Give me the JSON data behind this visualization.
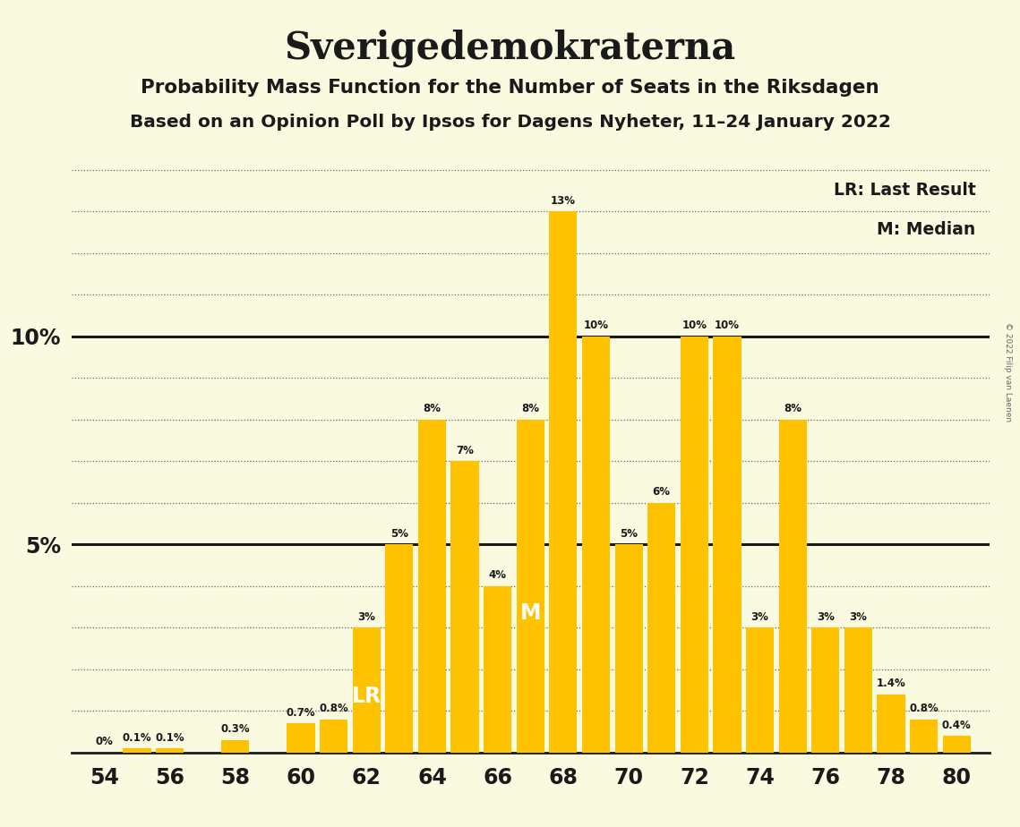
{
  "title": "Sverigedemokraterna",
  "subtitle1": "Probability Mass Function for the Number of Seats in the Riksdagen",
  "subtitle2": "Based on an Opinion Poll by Ipsos for Dagens Nyheter, 11–24 January 2022",
  "copyright": "© 2022 Filip van Laenen",
  "seats": [
    54,
    55,
    56,
    57,
    58,
    59,
    60,
    61,
    62,
    63,
    64,
    65,
    66,
    67,
    68,
    69,
    70,
    71,
    72,
    73,
    74,
    75,
    76,
    77,
    78,
    79,
    80
  ],
  "probabilities": [
    0.0,
    0.1,
    0.1,
    0.0,
    0.3,
    0.0,
    0.7,
    0.8,
    3.0,
    5.0,
    8.0,
    7.0,
    4.0,
    8.0,
    13.0,
    10.0,
    5.0,
    6.0,
    10.0,
    10.0,
    3.0,
    8.0,
    3.0,
    3.0,
    1.4,
    0.8,
    0.4
  ],
  "labels": [
    "0%",
    "0.1%",
    "0.1%",
    "",
    "0.3%",
    "",
    "0.7%",
    "0.8%",
    "3%",
    "5%",
    "8%",
    "7%",
    "4%",
    "8%",
    "13%",
    "10%",
    "5%",
    "6%",
    "10%",
    "10%",
    "3%",
    "8%",
    "3%",
    "3%",
    "1.4%",
    "0.8%",
    "0.4%"
  ],
  "bar_color": "#FFC200",
  "background_color": "#FAFAE0",
  "text_color": "#1a1a1a",
  "lr_seat": 62,
  "median_seat": 67,
  "ylim_max": 14.5,
  "xtick_step": 2,
  "xmin": 53,
  "xmax": 81
}
